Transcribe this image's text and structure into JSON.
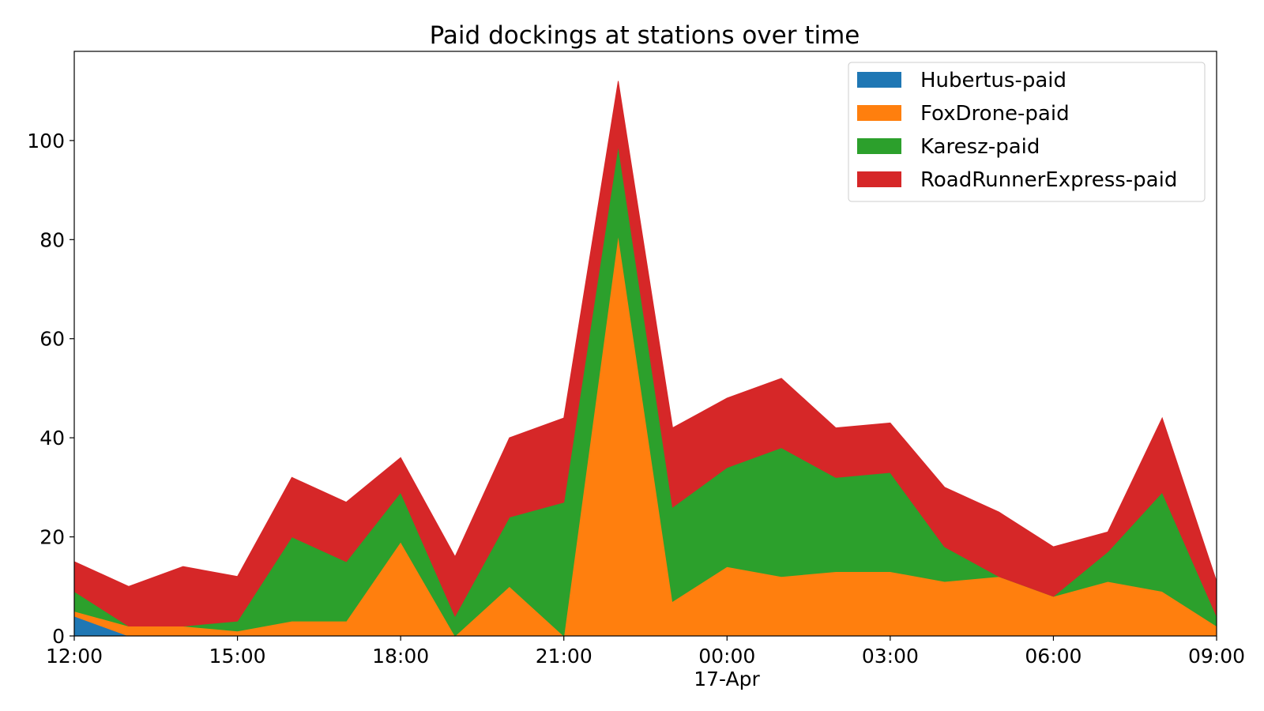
{
  "chart_data": {
    "type": "area",
    "stacked": true,
    "title": "Paid dockings at stations over time",
    "xlabel": "",
    "ylabel": "",
    "x": [
      "2024-04-16 12:00",
      "2024-04-16 13:00",
      "2024-04-16 14:00",
      "2024-04-16 15:00",
      "2024-04-16 16:00",
      "2024-04-16 17:00",
      "2024-04-16 18:00",
      "2024-04-16 19:00",
      "2024-04-16 20:00",
      "2024-04-16 21:00",
      "2024-04-16 22:00",
      "2024-04-16 23:00",
      "2024-04-17 00:00",
      "2024-04-17 01:00",
      "2024-04-17 02:00",
      "2024-04-17 03:00",
      "2024-04-17 04:00",
      "2024-04-17 05:00",
      "2024-04-17 06:00",
      "2024-04-17 07:00",
      "2024-04-17 08:00",
      "2024-04-17 09:00"
    ],
    "x_ticks": [
      "12:00",
      "15:00",
      "18:00",
      "21:00",
      "00:00",
      "03:00",
      "06:00",
      "09:00"
    ],
    "x_sublabel": "17-Apr",
    "y_ticks": [
      0,
      20,
      40,
      60,
      80,
      100
    ],
    "ylim": [
      0,
      118
    ],
    "grid": false,
    "legend_position": "top-right",
    "series": [
      {
        "name": "Hubertus-paid",
        "color": "#1f77b4",
        "values": [
          4,
          0,
          0,
          0,
          0,
          0,
          0,
          0,
          0,
          0,
          0,
          0,
          0,
          0,
          0,
          0,
          0,
          0,
          0,
          0,
          0,
          0
        ]
      },
      {
        "name": "FoxDrone-paid",
        "color": "#ff7f0e",
        "values": [
          1,
          2,
          2,
          1,
          3,
          3,
          19,
          0,
          10,
          0,
          81,
          7,
          14,
          12,
          13,
          13,
          11,
          12,
          8,
          11,
          9,
          2
        ]
      },
      {
        "name": "Karesz-paid",
        "color": "#2ca02c",
        "values": [
          4,
          0,
          0,
          2,
          17,
          12,
          10,
          4,
          14,
          27,
          18,
          19,
          20,
          26,
          19,
          20,
          7,
          0,
          0,
          6,
          20,
          2
        ]
      },
      {
        "name": "RoadRunnerExpress-paid",
        "color": "#d62728",
        "values": [
          6,
          8,
          12,
          9,
          12,
          12,
          7,
          12,
          16,
          17,
          13,
          16,
          14,
          14,
          10,
          10,
          12,
          13,
          10,
          4,
          15,
          7
        ]
      }
    ]
  }
}
